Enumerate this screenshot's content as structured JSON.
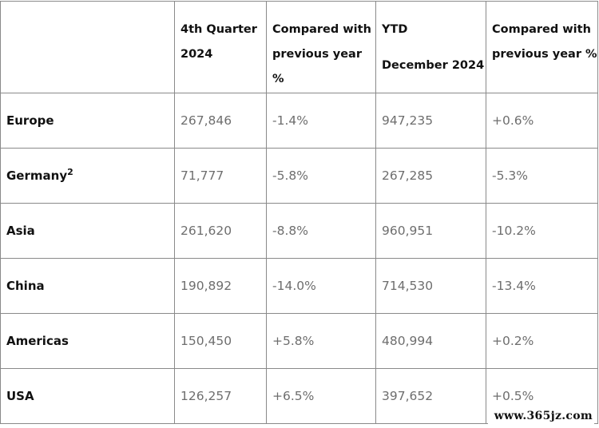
{
  "table": {
    "header": {
      "region": "",
      "q4": "4th Quarter 2024",
      "q4_change": "Compared with previous year %",
      "ytd_line1": "YTD",
      "ytd_line2": "December 2024",
      "ytd_change": "Compared with previous year %"
    },
    "rows": [
      {
        "region": "Europe",
        "footnote": "",
        "q4": "267,846",
        "q4_change": "-1.4%",
        "ytd": "947,235",
        "ytd_change": "+0.6%"
      },
      {
        "region": "Germany",
        "footnote": "2",
        "q4": "71,777",
        "q4_change": "-5.8%",
        "ytd": "267,285",
        "ytd_change": "-5.3%"
      },
      {
        "region": "Asia",
        "footnote": "",
        "q4": "261,620",
        "q4_change": "-8.8%",
        "ytd": "960,951",
        "ytd_change": "-10.2%"
      },
      {
        "region": "China",
        "footnote": "",
        "q4": "190,892",
        "q4_change": "-14.0%",
        "ytd": "714,530",
        "ytd_change": "-13.4%"
      },
      {
        "region": "Americas",
        "footnote": "",
        "q4": "150,450",
        "q4_change": "+5.8%",
        "ytd": "480,994",
        "ytd_change": "+0.2%"
      },
      {
        "region": "USA",
        "footnote": "",
        "q4": "126,257",
        "q4_change": "+6.5%",
        "ytd": "397,652",
        "ytd_change": "+0.5%"
      }
    ]
  },
  "watermark": "www.365jz.com"
}
